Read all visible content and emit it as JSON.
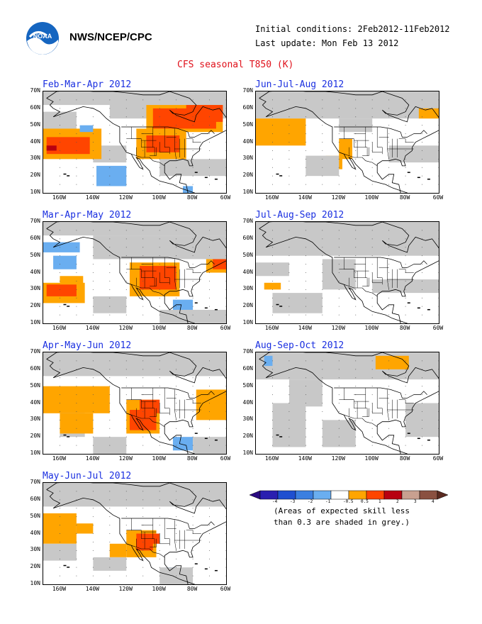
{
  "header": {
    "agency": "NWS/NCEP/CPC",
    "initial_conditions": "Initial conditions: 2Feb2012-11Feb2012",
    "last_update": "Last update: Mon Feb 13 2012",
    "product_title": "CFS seasonal T850 (K)"
  },
  "axes": {
    "lat_labels": [
      "70N",
      "60N",
      "50N",
      "40N",
      "30N",
      "20N",
      "10N"
    ],
    "lon_labels": [
      "160W",
      "140W",
      "120W",
      "100W",
      "80W",
      "60W"
    ]
  },
  "panels": [
    {
      "title": "Feb-Mar-Apr 2012"
    },
    {
      "title": "Jun-Jul-Aug 2012"
    },
    {
      "title": "Mar-Apr-May 2012"
    },
    {
      "title": "Jul-Aug-Sep 2012"
    },
    {
      "title": "Apr-May-Jun 2012"
    },
    {
      "title": "Aug-Sep-Oct 2012"
    },
    {
      "title": "May-Jun-Jul 2012"
    }
  ],
  "legend": {
    "tick_labels": [
      "-4",
      "-3",
      "-2",
      "-1",
      "-0.5",
      "0.5",
      "1",
      "2",
      "3",
      "4"
    ],
    "colors": [
      "#2a1fb0",
      "#1f4fd0",
      "#3b7fe0",
      "#6aaef0",
      "#ffffff",
      "#ffa500",
      "#ff4500",
      "#b80010",
      "#c8a090",
      "#8a5040"
    ],
    "note_line1": "(Areas of expected skill less",
    "note_line2": "than 0.3 are shaded in grey.)",
    "skill_grey": "#c8c8c8"
  }
}
